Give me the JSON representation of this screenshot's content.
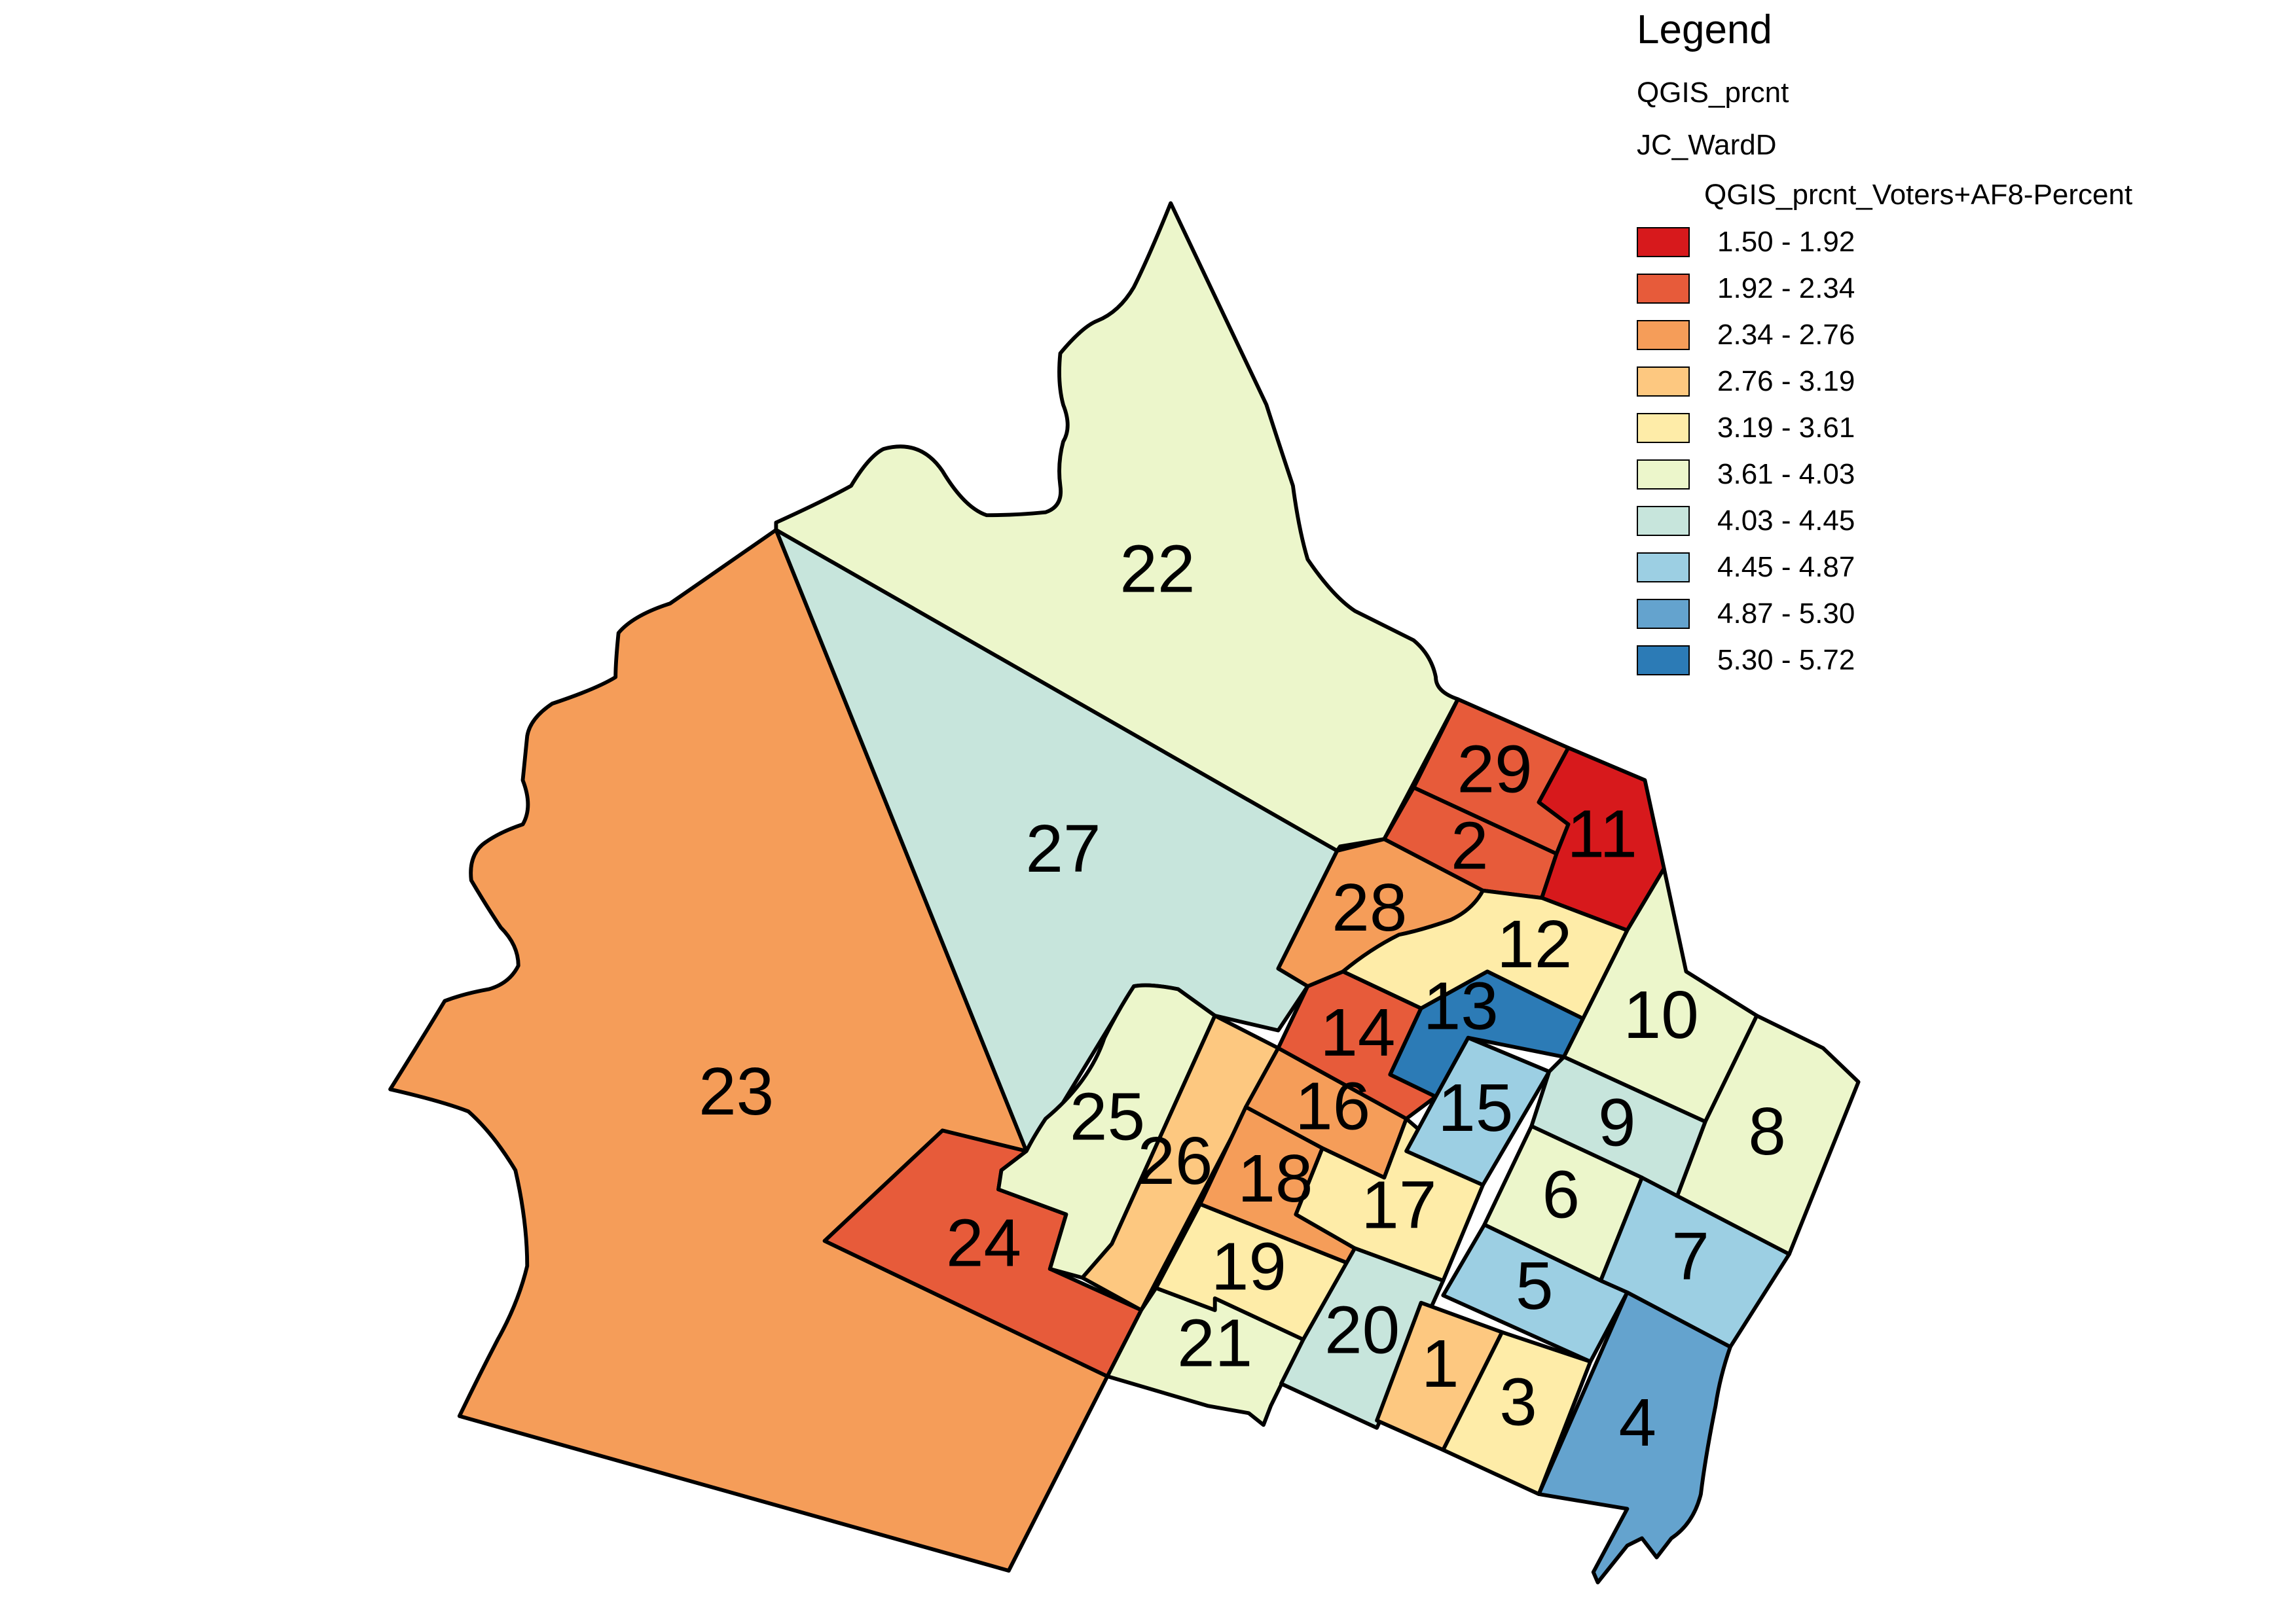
{
  "legend": {
    "title": "Legend",
    "group": "QGIS_prcnt",
    "layer": "JC_WardD",
    "field": "QGIS_prcnt_Voters+AF8-Percent",
    "classes": [
      {
        "label": "1.50 - 1.92",
        "color": "#d7191c"
      },
      {
        "label": "1.92 - 2.34",
        "color": "#e75b3a"
      },
      {
        "label": "2.34 - 2.76",
        "color": "#f59d59"
      },
      {
        "label": "2.76 - 3.19",
        "color": "#fdc880"
      },
      {
        "label": "3.19 - 3.61",
        "color": "#feeca8"
      },
      {
        "label": "3.61 - 4.03",
        "color": "#ecf6cb"
      },
      {
        "label": "4.03 - 4.45",
        "color": "#c7e5dc"
      },
      {
        "label": "4.45 - 4.87",
        "color": "#9ccfe3"
      },
      {
        "label": "4.87 - 5.30",
        "color": "#64a3ce"
      },
      {
        "label": "5.30 - 5.72",
        "color": "#2c7bb6"
      }
    ]
  },
  "wards": [
    {
      "label": "1",
      "class": 3
    },
    {
      "label": "2",
      "class": 1
    },
    {
      "label": "3",
      "class": 4
    },
    {
      "label": "4",
      "class": 8
    },
    {
      "label": "5",
      "class": 7
    },
    {
      "label": "6",
      "class": 5
    },
    {
      "label": "7",
      "class": 7
    },
    {
      "label": "8",
      "class": 5
    },
    {
      "label": "9",
      "class": 6
    },
    {
      "label": "10",
      "class": 5
    },
    {
      "label": "11",
      "class": 0
    },
    {
      "label": "12",
      "class": 4
    },
    {
      "label": "13",
      "class": 9
    },
    {
      "label": "14",
      "class": 1
    },
    {
      "label": "15",
      "class": 7
    },
    {
      "label": "16",
      "class": 2
    },
    {
      "label": "17",
      "class": 4
    },
    {
      "label": "18",
      "class": 2
    },
    {
      "label": "19",
      "class": 4
    },
    {
      "label": "20",
      "class": 6
    },
    {
      "label": "21",
      "class": 5
    },
    {
      "label": "22",
      "class": 5
    },
    {
      "label": "23",
      "class": 2
    },
    {
      "label": "24",
      "class": 1
    },
    {
      "label": "25",
      "class": 5
    },
    {
      "label": "26",
      "class": 3
    },
    {
      "label": "27",
      "class": 6
    },
    {
      "label": "28",
      "class": 2
    },
    {
      "label": "29",
      "class": 1
    }
  ]
}
